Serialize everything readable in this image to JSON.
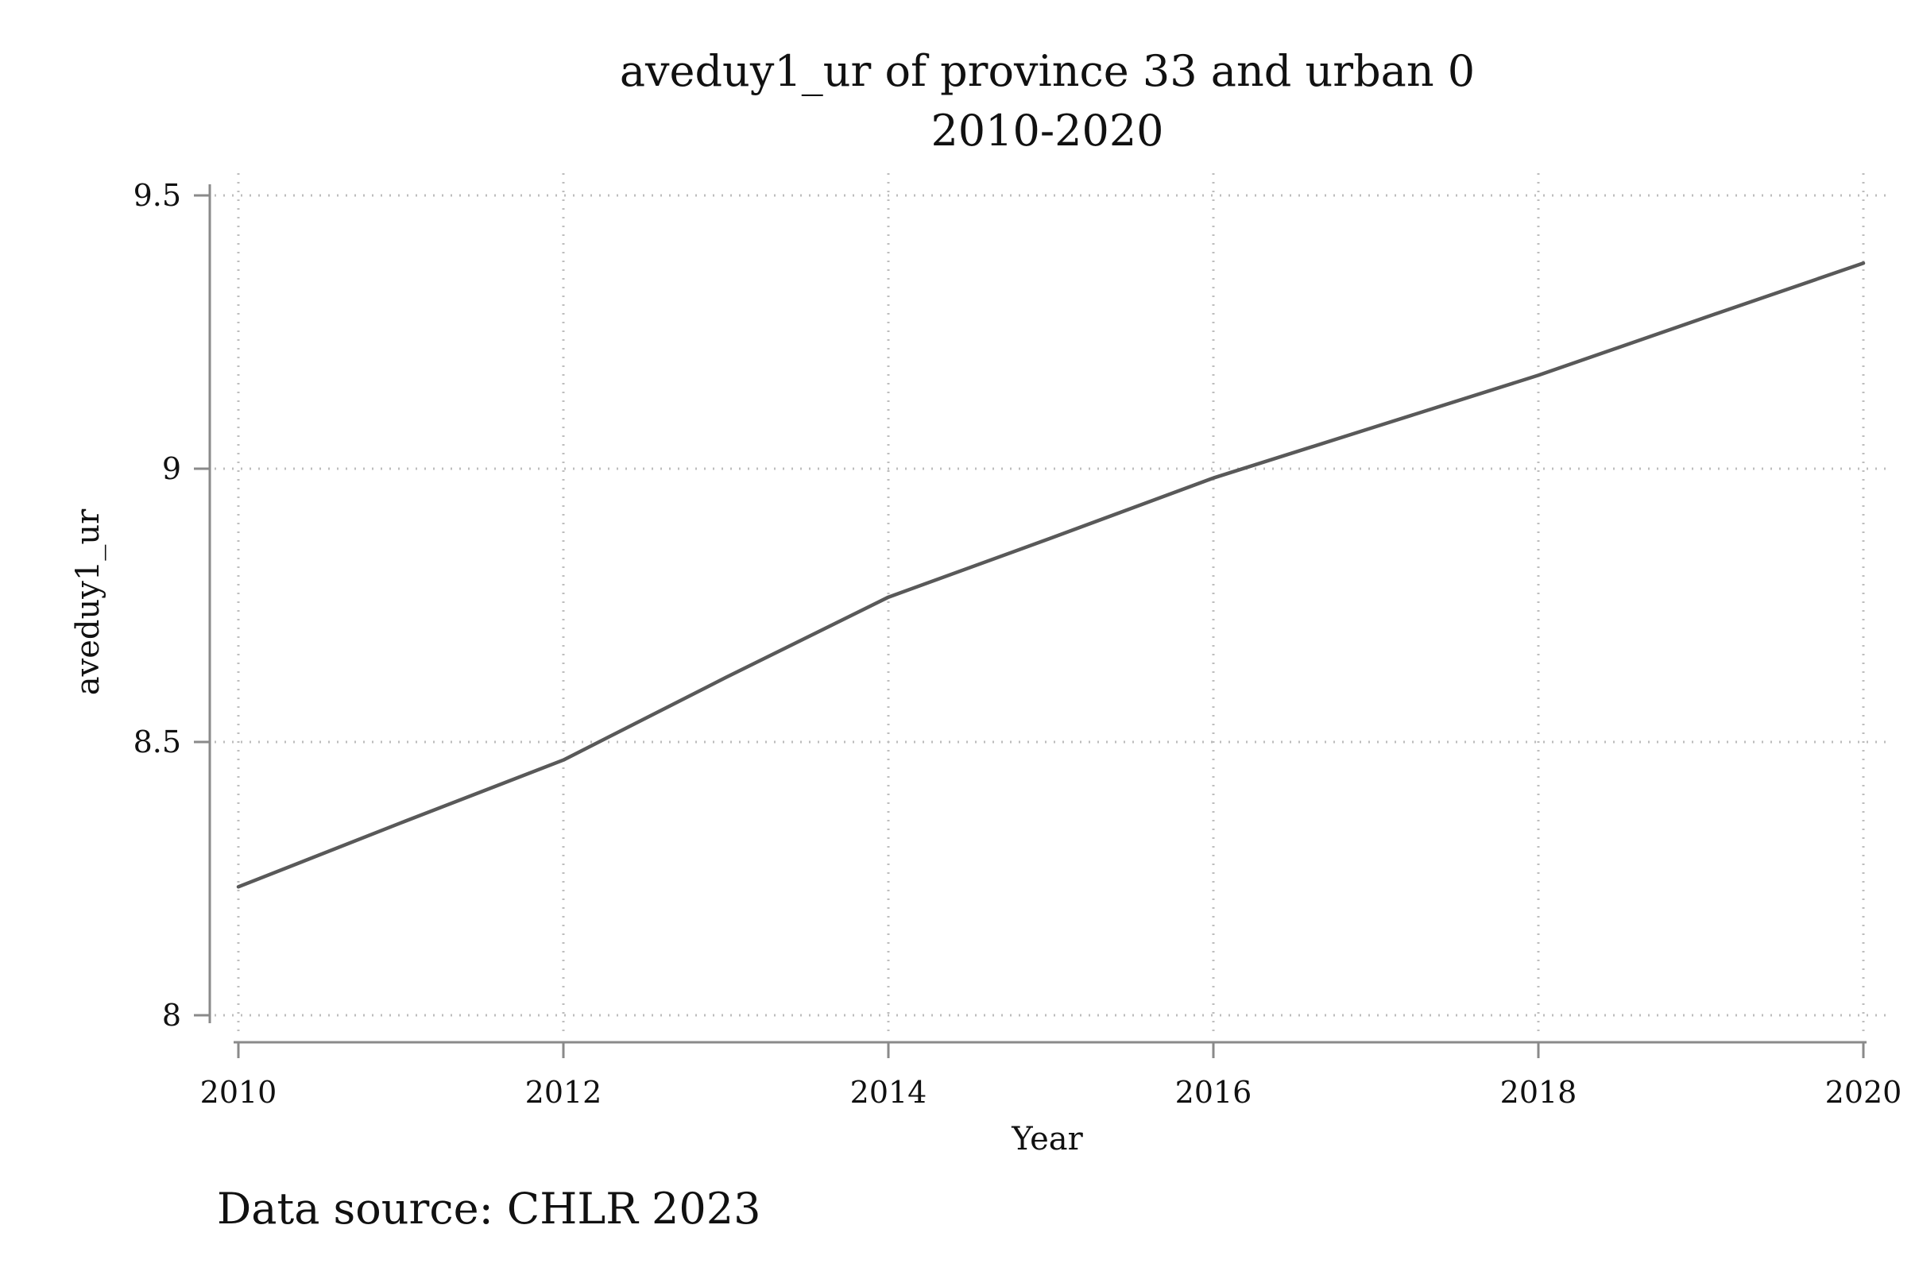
{
  "chart_data": {
    "type": "line",
    "title": "aveduy1_ur of province 33 and urban 0",
    "subtitle": "2010-2020",
    "xlabel": "Year",
    "ylabel": "aveduy1_ur",
    "note": "Data source: CHLR 2023",
    "x": [
      2010,
      2011,
      2012,
      2013,
      2014,
      2015,
      2016,
      2017,
      2018,
      2019,
      2020
    ],
    "series": [
      {
        "values": [
          8.235,
          8.352,
          8.467,
          8.618,
          8.765,
          8.873,
          8.983,
          9.077,
          9.171,
          9.274,
          9.376
        ],
        "color": "#595959"
      }
    ],
    "xlim": [
      2010,
      2020
    ],
    "ylim": [
      8,
      9.5
    ],
    "xticks": [
      "2010",
      "2012",
      "2014",
      "2016",
      "2018",
      "2020"
    ],
    "yticks": [
      "8",
      "8.5",
      "9",
      "9.5"
    ],
    "grid": true,
    "legend": "none"
  }
}
